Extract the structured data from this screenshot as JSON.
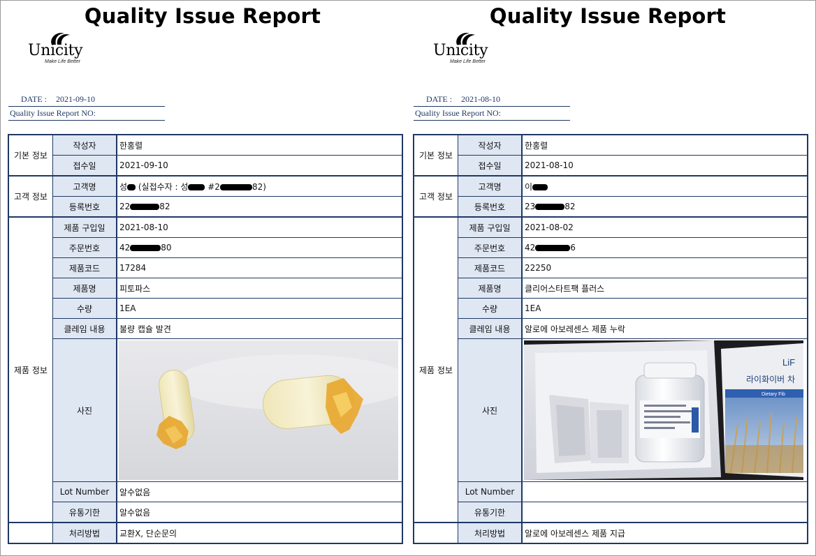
{
  "reports": [
    {
      "title": "Quality Issue Report",
      "logo": {
        "word": "Unicity",
        "tagline": "Make Life Better"
      },
      "date_label": "DATE :",
      "date_value": "2021-09-10",
      "report_no_label": "Quality Issue Report NO:",
      "sections": {
        "basic": "기본 정보",
        "customer": "고객 정보",
        "product": "제품 정보"
      },
      "fields": {
        "author_label": "작성자",
        "author": "한홍렬",
        "received_label": "접수일",
        "received": "2021-09-10",
        "customer_label": "고객명",
        "customer_pre": "성",
        "customer_mid": " (실접수자 : 성",
        "customer_mid2": " #2",
        "customer_post": "82)",
        "reg_label": "등록번호",
        "reg_pre": "22",
        "reg_post": "82",
        "purchase_label": "제품 구입일",
        "purchase": "2021-08-10",
        "order_label": "주문번호",
        "order_pre": "42",
        "order_post": "80",
        "code_label": "제품코드",
        "code": "17284",
        "name_label": "제품명",
        "name": "피토파스",
        "qty_label": "수량",
        "qty": "1EA",
        "claim_label": "클레임 내용",
        "claim": "불량 캡슐 발견",
        "photo_label": "사진",
        "lot_label": "Lot Number",
        "lot": "알수없음",
        "expiry_label": "유통기한",
        "expiry": "알수없음",
        "handling_label": "처리방법",
        "handling": "교환X, 단순문의"
      }
    },
    {
      "title": "Quality Issue Report",
      "logo": {
        "word": "Unicity",
        "tagline": "Make Life Better"
      },
      "date_label": "DATE :",
      "date_value": "2021-08-10",
      "report_no_label": "Quality Issue Report NO:",
      "sections": {
        "basic": "기본 정보",
        "customer": "고객 정보",
        "product": "제품 정보"
      },
      "fields": {
        "author_label": "작성자",
        "author": "한홍렬",
        "received_label": "접수일",
        "received": "2021-08-10",
        "customer_label": "고객명",
        "customer_pre": "이",
        "customer_mid": "",
        "customer_mid2": "",
        "customer_post": "",
        "reg_label": "등록번호",
        "reg_pre": "23",
        "reg_post": "82",
        "purchase_label": "제품 구입일",
        "purchase": "2021-08-02",
        "order_label": "주문번호",
        "order_pre": "42",
        "order_post": "6",
        "code_label": "제품코드",
        "code": "22250",
        "name_label": "제품명",
        "name": "클리어스타트팩 플러스",
        "qty_label": "수량",
        "qty": "1EA",
        "claim_label": "클레임 내용",
        "claim": "알로에 아보레센스 제품 누락",
        "photo_label": "사진",
        "lot_label": "Lot Number",
        "lot": "",
        "expiry_label": "유통기한",
        "expiry": "",
        "handling_label": "처리방법",
        "handling": "알로에 아보레센스 제품 지급"
      },
      "photo_text": {
        "box_brand": "LiF",
        "box_title": "라이화이버 차",
        "box_band": "Dietary Fib"
      }
    }
  ]
}
